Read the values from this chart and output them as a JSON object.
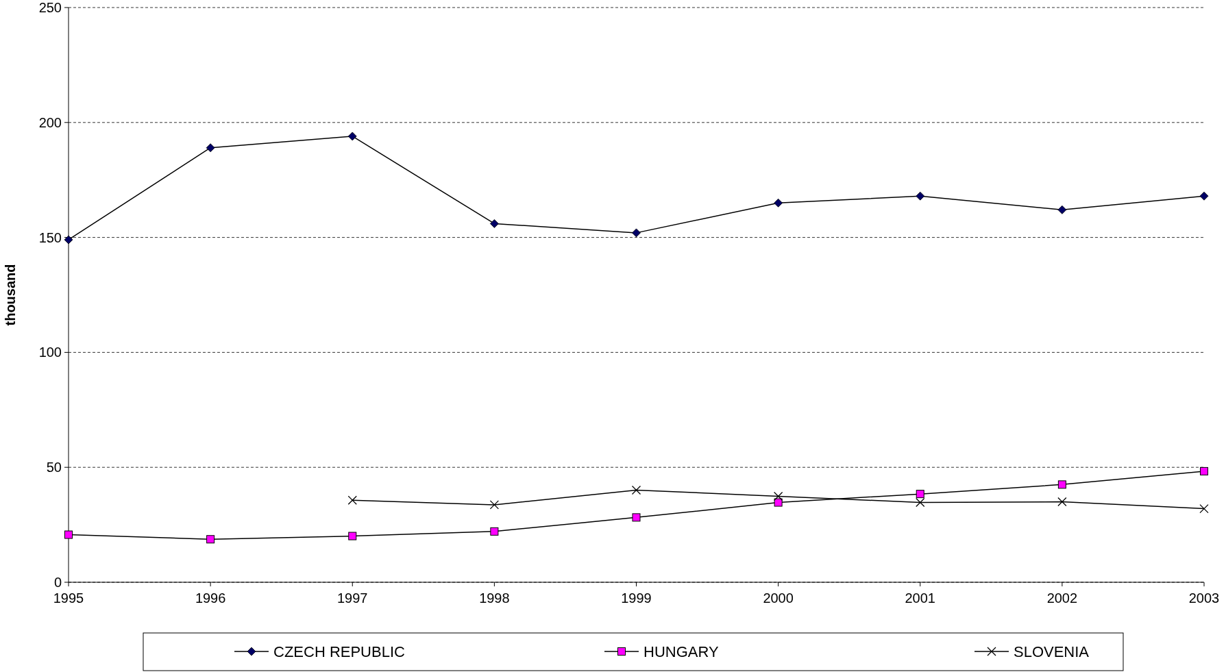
{
  "chart_data": {
    "type": "line",
    "ylabel": "thousand",
    "x": [
      1995,
      1996,
      1997,
      1998,
      1999,
      2000,
      2001,
      2002,
      2003
    ],
    "xlim": [
      1995,
      2003
    ],
    "xticks": [
      1995,
      1996,
      1997,
      1998,
      1999,
      2000,
      2001,
      2002,
      2003
    ],
    "ylim": [
      0,
      250
    ],
    "yticks": [
      0,
      50,
      100,
      150,
      200,
      250
    ],
    "grid": "y",
    "legend": "bottom",
    "line_style": "solid",
    "series": [
      {
        "name": "CZECH REPUBLIC",
        "color": "#000066",
        "marker": "diamond",
        "values": [
          149,
          189,
          194,
          156,
          152,
          165,
          168,
          162,
          168
        ]
      },
      {
        "name": "HUNGARY",
        "color": "#ff00ff",
        "marker": "square",
        "values": [
          20.7,
          18.7,
          20.1,
          22.1,
          28.2,
          34.7,
          38.4,
          42.5,
          48.3
        ]
      },
      {
        "name": "SLOVENIA",
        "color": "#000000",
        "marker": "cross",
        "values": [
          null,
          null,
          35.7,
          33.7,
          40.1,
          37.4,
          34.7,
          35,
          32
        ]
      }
    ]
  }
}
